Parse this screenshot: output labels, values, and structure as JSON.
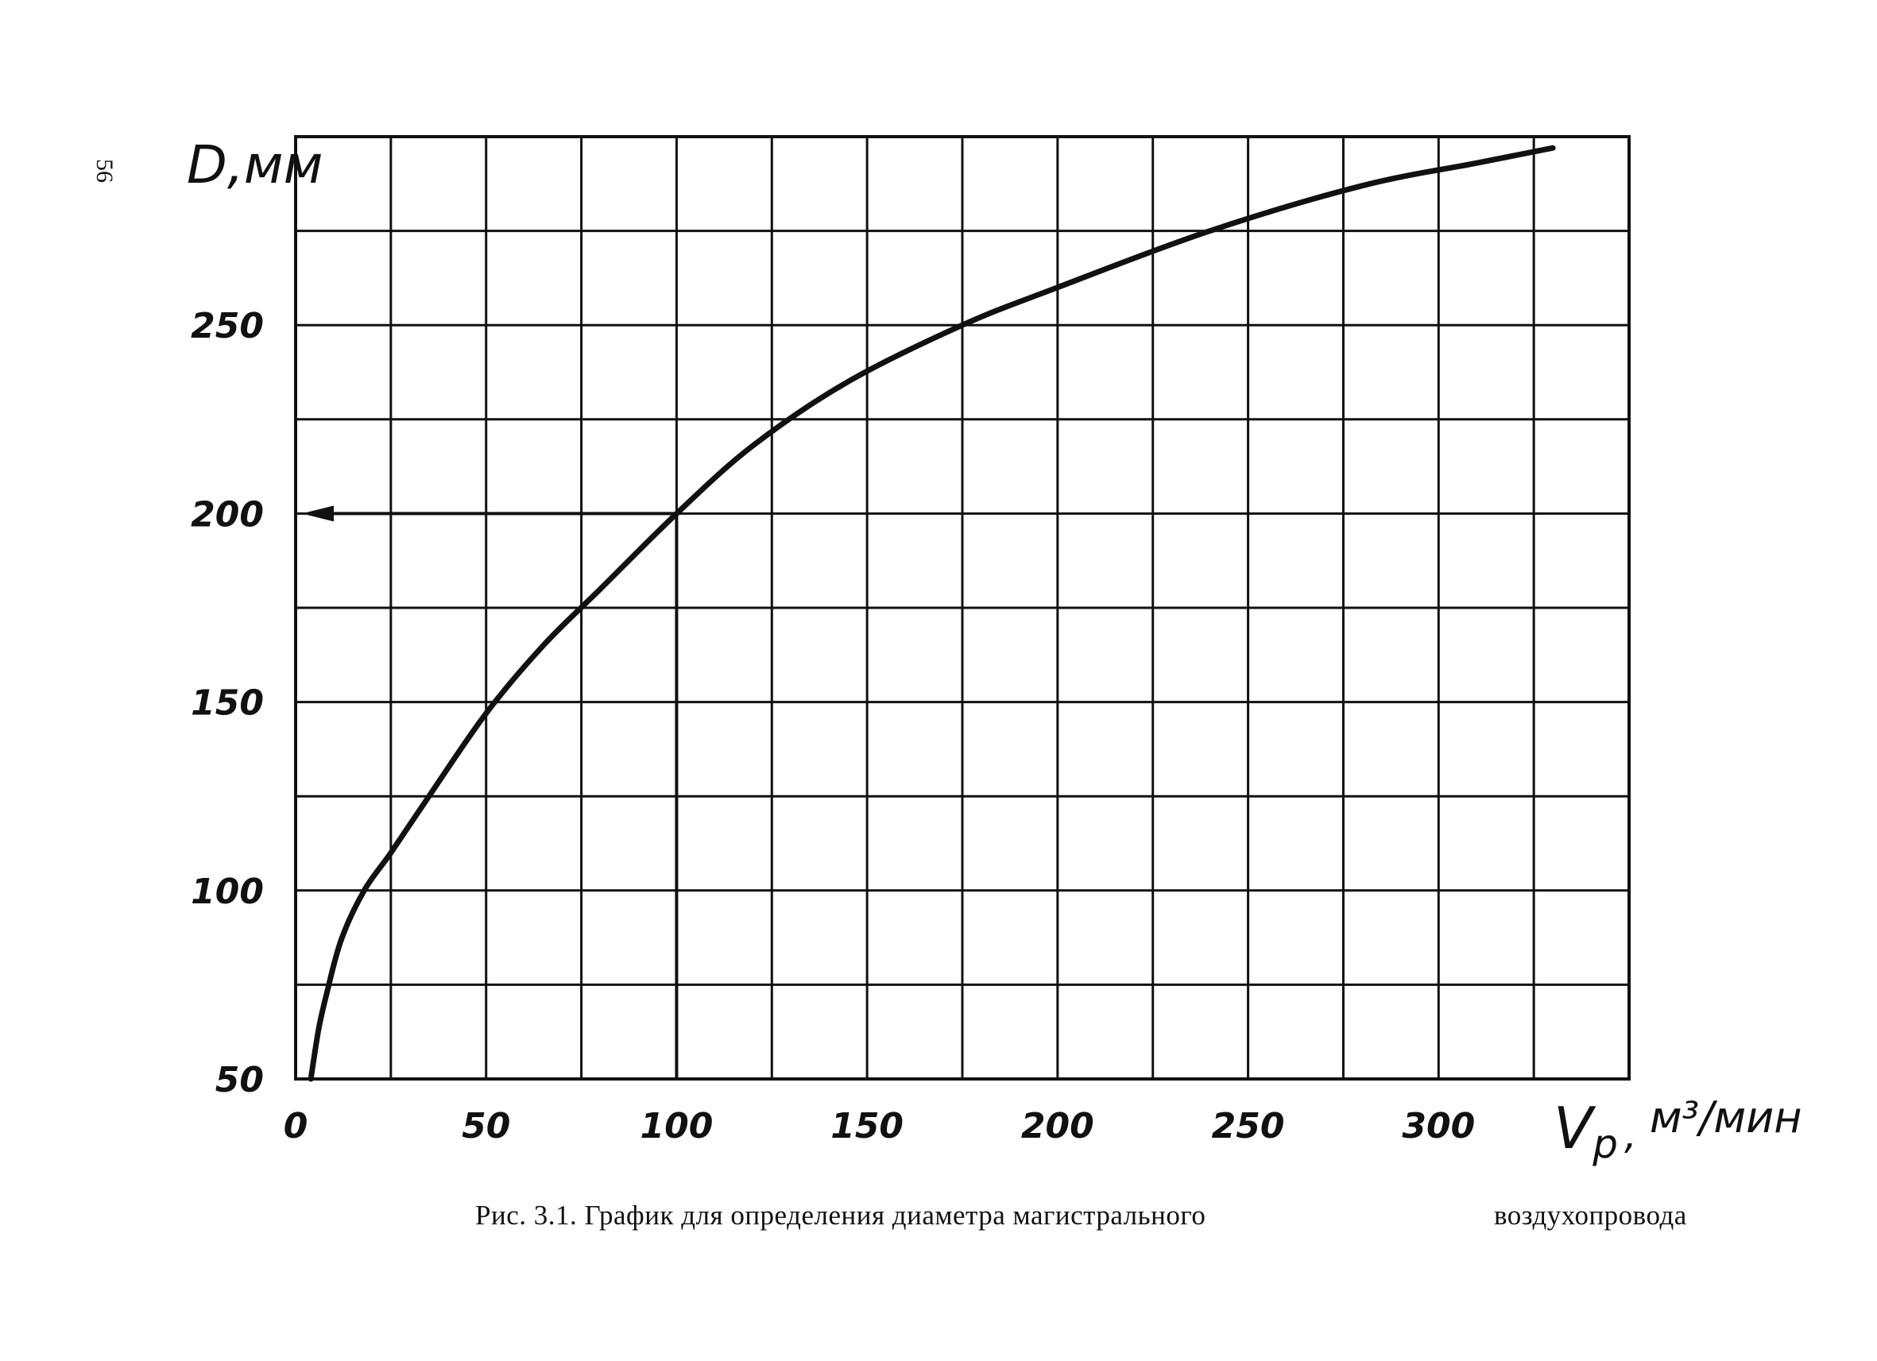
{
  "page_number": "56",
  "caption": {
    "part1": "Рис. 3.1. График для определения диаметра магистрального",
    "part2": "воздухопровода"
  },
  "chart_data": {
    "type": "line",
    "ylabel": "D,мм",
    "xlabel_main": "V",
    "xlabel_sub": "р",
    "xlabel_unit": "м³/мин",
    "xlim": [
      0,
      350
    ],
    "ylim": [
      50,
      300
    ],
    "x_major_step": 25,
    "y_major_step": 25,
    "x_ticks": [
      {
        "value": 0,
        "label": "0"
      },
      {
        "value": 50,
        "label": "50"
      },
      {
        "value": 100,
        "label": "100"
      },
      {
        "value": 150,
        "label": "150"
      },
      {
        "value": 200,
        "label": "200"
      },
      {
        "value": 250,
        "label": "250"
      },
      {
        "value": 300,
        "label": "300"
      }
    ],
    "y_ticks": [
      {
        "value": 50,
        "label": "50"
      },
      {
        "value": 100,
        "label": "100"
      },
      {
        "value": 150,
        "label": "150"
      },
      {
        "value": 200,
        "label": "200"
      },
      {
        "value": 250,
        "label": "250"
      }
    ],
    "grid": true,
    "series": [
      {
        "x": [
          4,
          6,
          8,
          12,
          18,
          25,
          35,
          50,
          65,
          80,
          100,
          120,
          145,
          175,
          200,
          240,
          280,
          310,
          330
        ],
        "y": [
          50,
          63,
          72,
          87,
          100,
          110,
          125,
          147,
          165,
          180,
          200,
          218,
          235,
          250,
          260,
          275,
          287,
          293,
          297
        ]
      }
    ],
    "example": {
      "x": 100,
      "y": 200
    }
  }
}
